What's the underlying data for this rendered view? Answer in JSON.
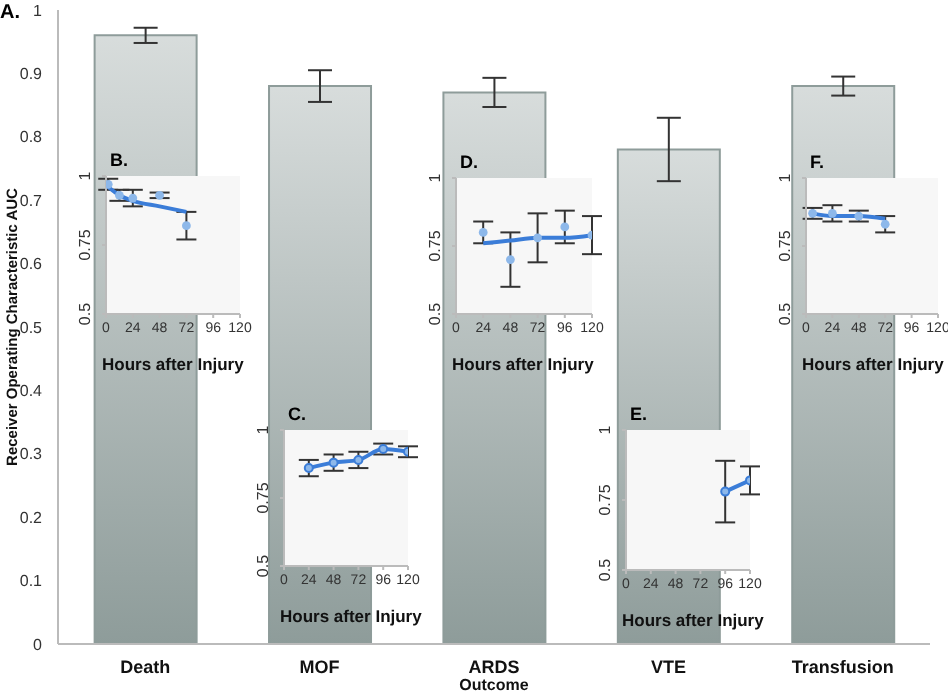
{
  "chart_data": [
    {
      "type": "bar",
      "title": "A.",
      "xlabel": "Outcome",
      "ylabel": "Receiver Operating Characteristic AUC",
      "categories": [
        "Death",
        "MOF",
        "ARDS",
        "VTE",
        "Transfusion"
      ],
      "values": [
        0.96,
        0.88,
        0.87,
        0.78,
        0.88
      ],
      "errors": [
        0.012,
        0.025,
        0.023,
        0.05,
        0.015
      ],
      "color": "#8e9c9a",
      "ylim": [
        0,
        1
      ],
      "yticks": [
        0,
        0.1,
        0.2,
        0.3,
        0.4,
        0.5,
        0.6,
        0.7,
        0.8,
        0.9,
        1
      ]
    },
    {
      "type": "scatter",
      "title": "B.",
      "xlabel": "Hours after Injury",
      "marker": "circle",
      "xlim": [
        0,
        120
      ],
      "xticks": [
        0,
        24,
        48,
        72,
        96,
        120
      ],
      "ylim": [
        0.5,
        1
      ],
      "yticks": [
        0.5,
        0.75,
        1
      ],
      "series": [
        {
          "color": "#8db8ea",
          "x": [
            2,
            12,
            24,
            48,
            72
          ],
          "values": [
            0.97,
            0.93,
            0.92,
            0.93,
            0.82
          ],
          "errors": [
            0.02,
            0.02,
            0.03,
            0.01,
            0.05
          ]
        },
        {
          "type": "line",
          "marker": "none",
          "color": "#3b7dd8",
          "x": [
            2,
            12,
            24,
            48,
            72
          ],
          "values": [
            0.96,
            0.93,
            0.91,
            0.89,
            0.87
          ]
        }
      ]
    },
    {
      "type": "line",
      "title": "C.",
      "xlabel": "Hours after Injury",
      "marker": "circle",
      "xlim": [
        0,
        120
      ],
      "xticks": [
        0,
        24,
        48,
        72,
        96,
        120
      ],
      "ylim": [
        0.5,
        1
      ],
      "yticks": [
        0.5,
        0.75,
        1
      ],
      "series": [
        {
          "color": "#3b7dd8",
          "x": [
            24,
            48,
            72,
            96,
            120
          ],
          "values": [
            0.86,
            0.88,
            0.89,
            0.93,
            0.92
          ],
          "errors": [
            0.03,
            0.03,
            0.03,
            0.02,
            0.02
          ]
        }
      ]
    },
    {
      "type": "scatter",
      "title": "D.",
      "xlabel": "Hours after Injury",
      "marker": "circle",
      "xlim": [
        0,
        120
      ],
      "xticks": [
        0,
        24,
        48,
        72,
        96,
        120
      ],
      "ylim": [
        0.5,
        1
      ],
      "yticks": [
        0.5,
        0.75,
        1
      ],
      "series": [
        {
          "color": "#8db8ea",
          "x": [
            24,
            48,
            72,
            96,
            120
          ],
          "values": [
            0.8,
            0.7,
            0.78,
            0.82,
            0.79
          ],
          "errors": [
            0.04,
            0.1,
            0.09,
            0.06,
            0.07
          ]
        },
        {
          "type": "line",
          "marker": "none",
          "color": "#3b7dd8",
          "x": [
            24,
            48,
            72,
            96,
            120
          ],
          "values": [
            0.76,
            0.77,
            0.78,
            0.78,
            0.79
          ]
        }
      ]
    },
    {
      "type": "line",
      "title": "E.",
      "xlabel": "Hours after Injury",
      "marker": "circle",
      "xlim": [
        0,
        120
      ],
      "xticks": [
        0,
        24,
        48,
        72,
        96,
        120
      ],
      "ylim": [
        0.5,
        1
      ],
      "yticks": [
        0.5,
        0.75,
        1
      ],
      "series": [
        {
          "color": "#3b7dd8",
          "x": [
            96,
            120
          ],
          "values": [
            0.78,
            0.82
          ],
          "errors": [
            0.11,
            0.05
          ]
        }
      ]
    },
    {
      "type": "scatter",
      "title": "F.",
      "xlabel": "Hours after Injury",
      "marker": "circle",
      "xlim": [
        0,
        120
      ],
      "xticks": [
        0,
        24,
        48,
        72,
        96,
        120
      ],
      "ylim": [
        0.5,
        1
      ],
      "yticks": [
        0.5,
        0.75,
        1
      ],
      "series": [
        {
          "color": "#8db8ea",
          "x": [
            6,
            24,
            48,
            72
          ],
          "values": [
            0.87,
            0.87,
            0.86,
            0.83
          ],
          "errors": [
            0.02,
            0.03,
            0.02,
            0.03
          ]
        },
        {
          "type": "line",
          "marker": "none",
          "color": "#3b7dd8",
          "x": [
            6,
            24,
            48,
            72
          ],
          "values": [
            0.87,
            0.86,
            0.86,
            0.85
          ]
        }
      ]
    }
  ]
}
